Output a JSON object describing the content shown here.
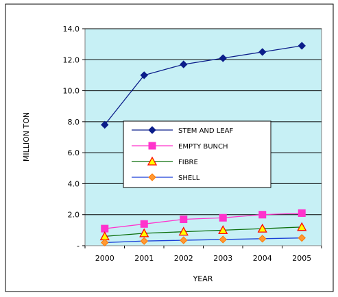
{
  "chart_data": {
    "type": "line",
    "title": "",
    "xlabel": "YEAR",
    "ylabel": "MILLION TON",
    "ylim": [
      0,
      14
    ],
    "y_ticks": [
      "-",
      "2.0",
      "4.0",
      "6.0",
      "8.0",
      "10.0",
      "12.0",
      "14.0"
    ],
    "categories": [
      "2000",
      "2001",
      "2002",
      "2003",
      "2004",
      "2005"
    ],
    "grid": "horizontal",
    "legend_position": "center",
    "plot_background": "#c7f0f5",
    "series": [
      {
        "name": "STEM AND LEAF",
        "color": "#0b1d8a",
        "marker": "diamond",
        "values": [
          7.8,
          11.0,
          11.7,
          12.1,
          12.5,
          12.9
        ]
      },
      {
        "name": "EMPTY BUNCH",
        "color": "#ff33cc",
        "marker": "square",
        "values": [
          1.1,
          1.4,
          1.7,
          1.8,
          2.0,
          2.1
        ]
      },
      {
        "name": "FIBRE",
        "color": "#0b6e0b",
        "marker": "triangle",
        "values": [
          0.6,
          0.8,
          0.9,
          1.0,
          1.1,
          1.2
        ]
      },
      {
        "name": "SHELL",
        "color": "#1a3fd6",
        "marker": "diamond-orange",
        "values": [
          0.2,
          0.3,
          0.35,
          0.4,
          0.45,
          0.5
        ]
      }
    ]
  }
}
